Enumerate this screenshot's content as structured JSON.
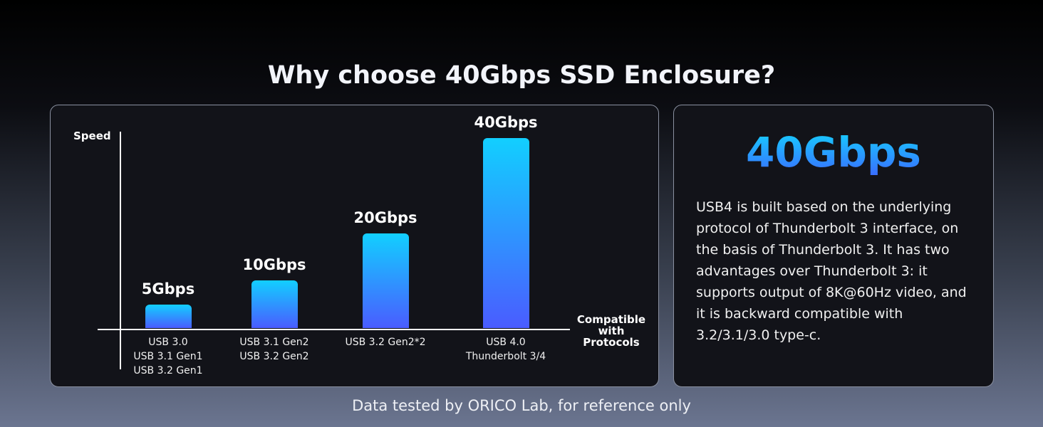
{
  "chart_data": {
    "type": "bar",
    "title": "Why choose 40Gbps SSD Enclosure?",
    "y_label": "Speed",
    "x_label": "Compatible\nwith\nProtocols",
    "categories": [
      "USB 3.0\nUSB 3.1 Gen1\nUSB 3.2 Gen1",
      "USB 3.1 Gen2\nUSB 3.2 Gen2",
      "USB 3.2 Gen2*2",
      "USB 4.0\nThunderbolt 3/4"
    ],
    "values": [
      5,
      10,
      20,
      40
    ],
    "value_labels": [
      "5Gbps",
      "10Gbps",
      "20Gbps",
      "40Gbps"
    ],
    "color": [
      "#12cfff",
      "#4a5cff"
    ],
    "ylim": [
      0,
      40
    ]
  },
  "panel": {
    "headline": "40Gbps",
    "body": "USB4 is built based on the underlying protocol of Thunderbolt 3 interface, on the basis of Thunderbolt 3. It has two advantages over Thunderbolt 3: it supports output of 8K@60Hz video, and it is backward compatible with 3.2/3.1/3.0 type-c."
  },
  "footnote": "Data tested by ORICO Lab, for reference only"
}
